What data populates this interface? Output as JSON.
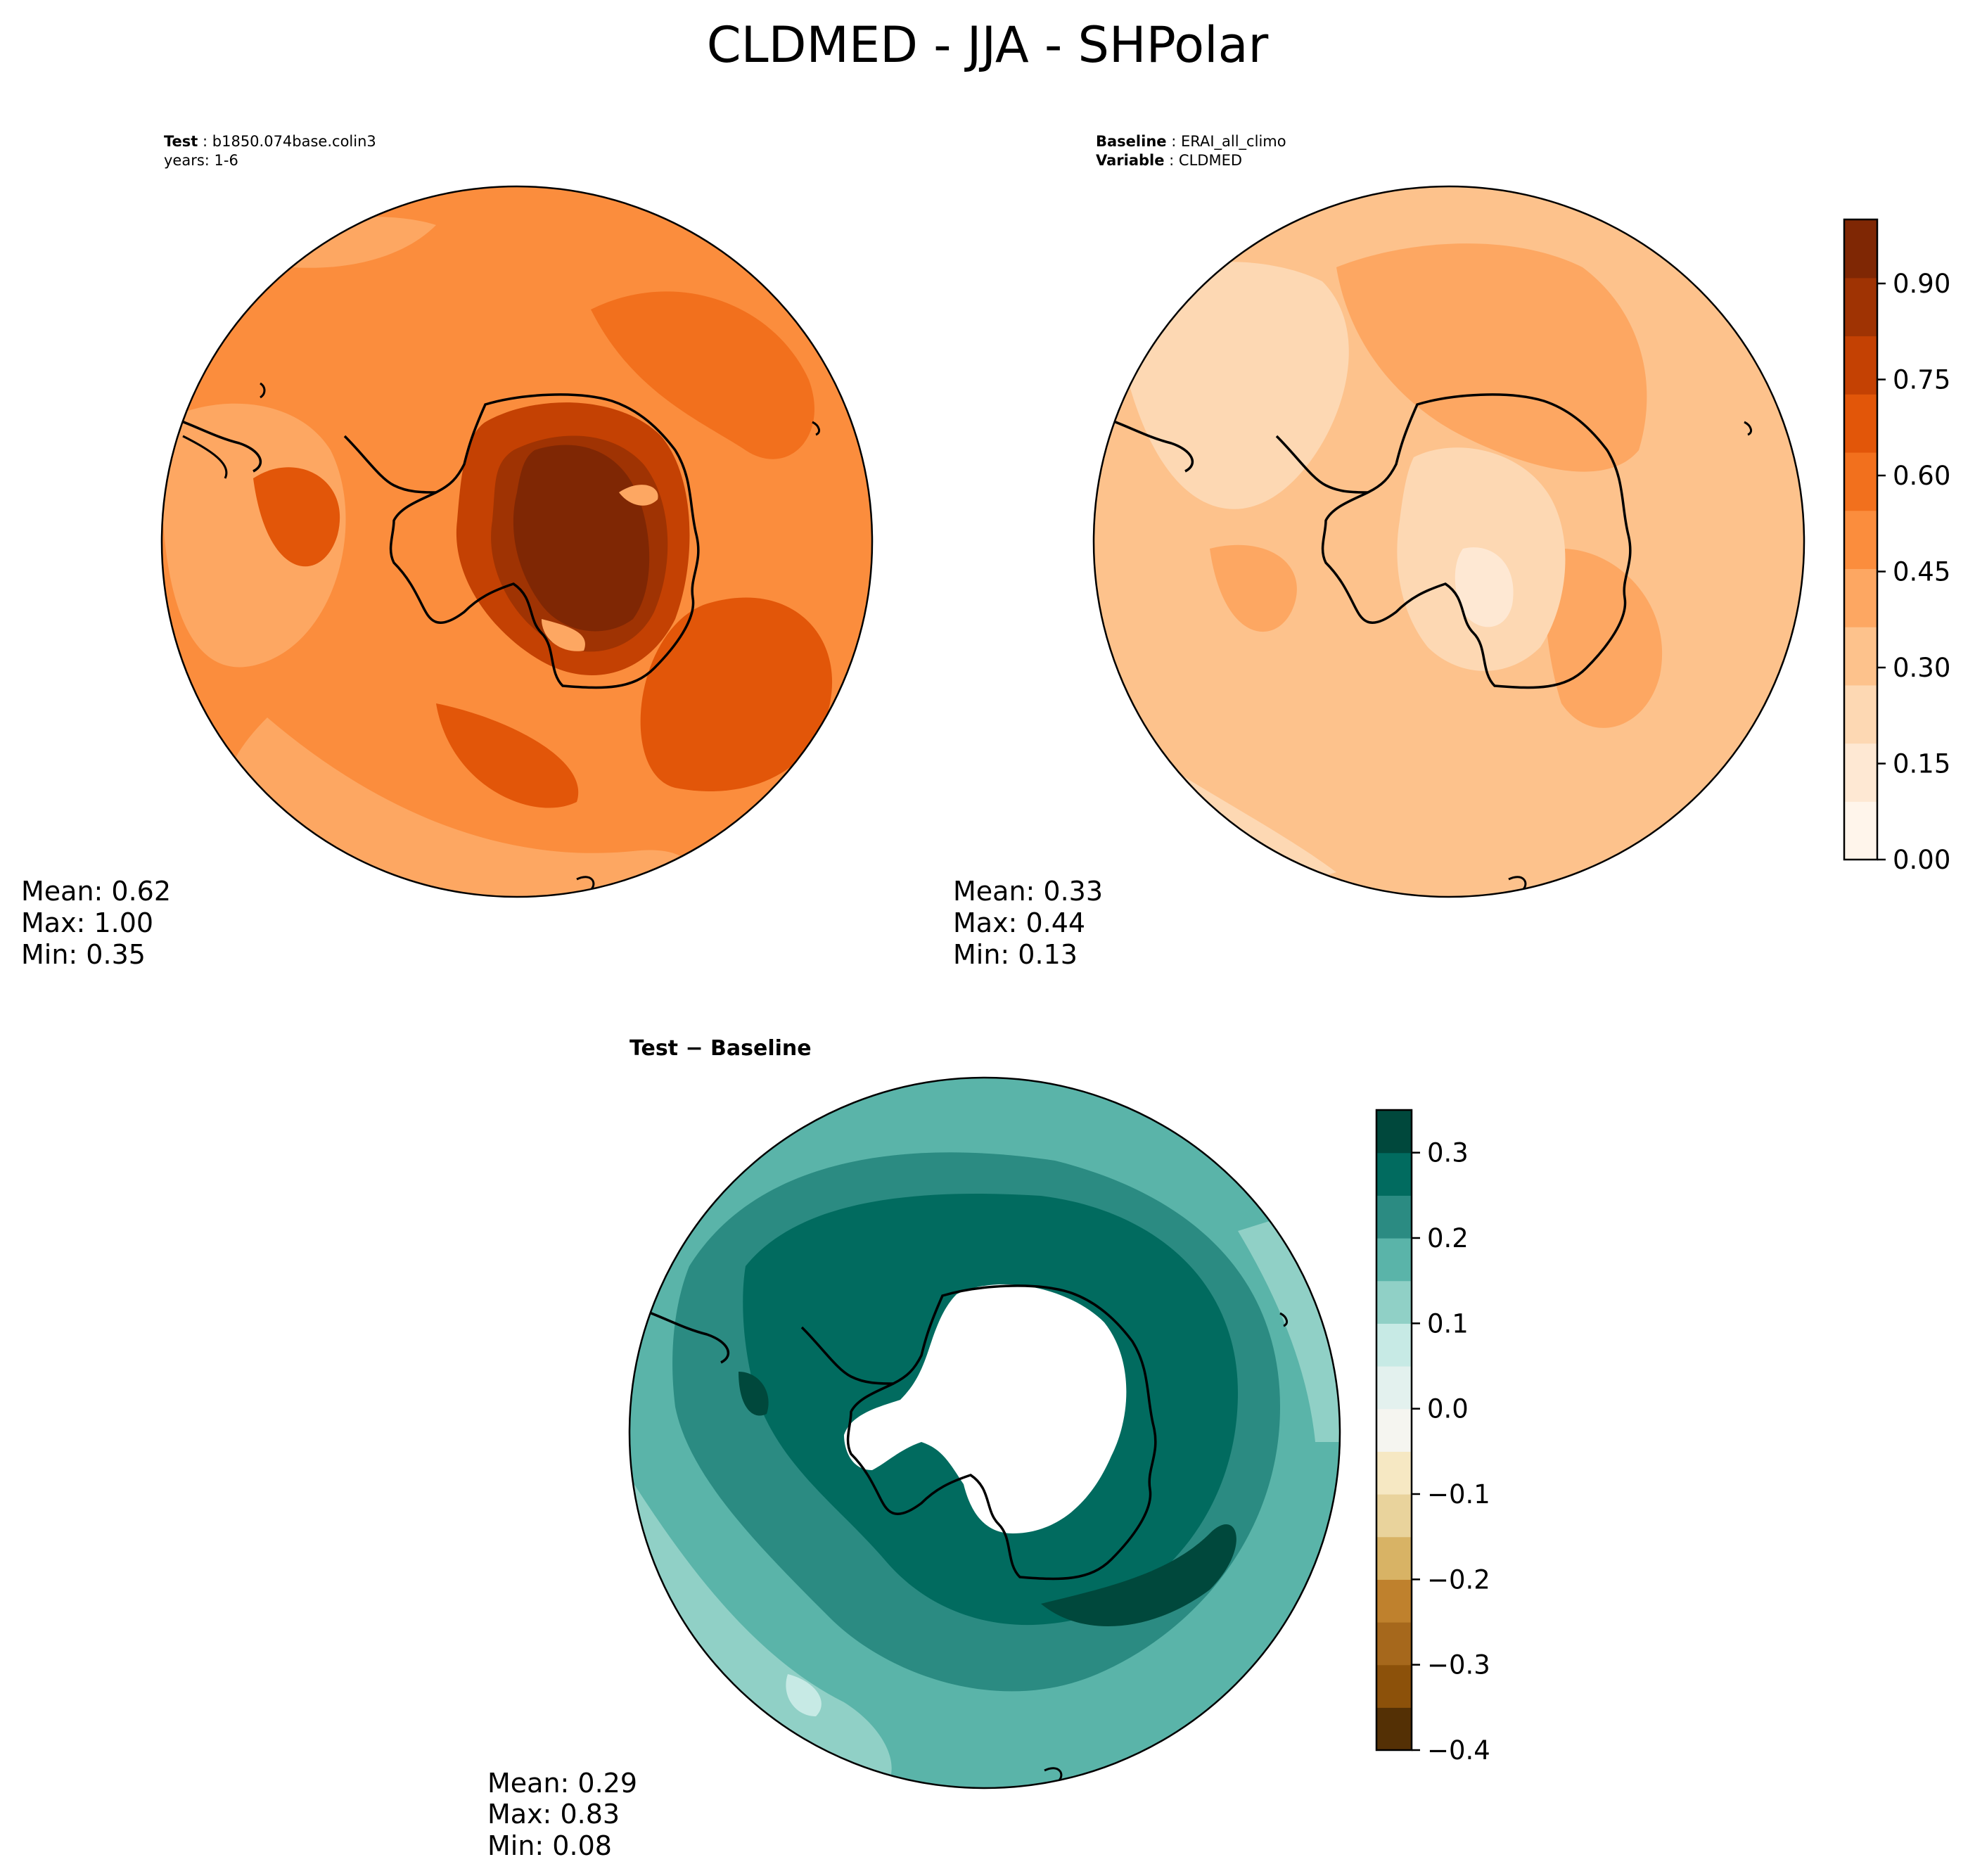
{
  "title": "CLDMED - JJA - SHPolar",
  "panels": [
    {
      "id": "test",
      "meta": [
        {
          "label": "Test",
          "value": "b1850.074base.colin3"
        },
        {
          "label": "",
          "value": "years: 1-6"
        }
      ],
      "stats": [
        "Mean:  0.62",
        "Max:  1.00",
        "Min:  0.35"
      ]
    },
    {
      "id": "baseline",
      "meta": [
        {
          "label": "Baseline",
          "value": "ERAI_all_climo"
        },
        {
          "label": "Variable",
          "value": "CLDMED"
        }
      ],
      "stats": [
        "Mean:  0.33",
        "Max:  0.44",
        "Min:  0.13"
      ]
    },
    {
      "id": "diff",
      "subtitle": "Test − Baseline",
      "stats": [
        "Mean:  0.29",
        "Max:  0.83",
        "Min:  0.08"
      ]
    }
  ],
  "colorbars": [
    {
      "id": "abs",
      "colormap": "Oranges",
      "range": [
        0.0,
        1.0
      ],
      "ticks": [
        0.0,
        0.15,
        0.3,
        0.45,
        0.6,
        0.75,
        0.9
      ],
      "tick_labels": [
        "0.00",
        "0.15",
        "0.30",
        "0.45",
        "0.60",
        "0.75",
        "0.90"
      ],
      "colors": [
        "#fff5eb",
        "#fee8d3",
        "#fdd8b3",
        "#fdc28c",
        "#fda762",
        "#fb8d3d",
        "#f2701d",
        "#e25609",
        "#c44103",
        "#9f3303",
        "#7f2704"
      ]
    },
    {
      "id": "diff",
      "colormap": "BrBG",
      "range": [
        -0.4,
        0.35
      ],
      "ticks": [
        -0.4,
        -0.3,
        -0.2,
        -0.1,
        0.0,
        0.1,
        0.2,
        0.3
      ],
      "tick_labels": [
        "−0.4",
        "−0.3",
        "−0.2",
        "−0.1",
        "0.0",
        "0.1",
        "0.2",
        "0.3"
      ],
      "colors": [
        "#543005",
        "#8c510a",
        "#a6681c",
        "#bf812d",
        "#d8b365",
        "#e9d39c",
        "#f6e8c3",
        "#f5f5f0",
        "#e3f1ee",
        "#c7eae5",
        "#90d0c6",
        "#5ab4a9",
        "#2b8b82",
        "#016b5f",
        "#00483c"
      ]
    }
  ],
  "chart_data": [
    {
      "type": "heatmap",
      "projection": "south-polar-stereographic",
      "title": "CLDMED - JJA - SHPolar",
      "panel": "Test: b1850.074base.colin3, years: 1-6",
      "colormap": "Oranges",
      "zlim": [
        0.0,
        1.0
      ],
      "mean": 0.62,
      "max": 1.0,
      "min": 0.35
    },
    {
      "type": "heatmap",
      "projection": "south-polar-stereographic",
      "panel": "Baseline: ERAI_all_climo, Variable: CLDMED",
      "colormap": "Oranges",
      "zlim": [
        0.0,
        1.0
      ],
      "mean": 0.33,
      "max": 0.44,
      "min": 0.13
    },
    {
      "type": "heatmap",
      "projection": "south-polar-stereographic",
      "panel": "Test − Baseline",
      "colormap": "BrBG",
      "zlim": [
        -0.4,
        0.35
      ],
      "mean": 0.29,
      "max": 0.83,
      "min": 0.08
    }
  ]
}
